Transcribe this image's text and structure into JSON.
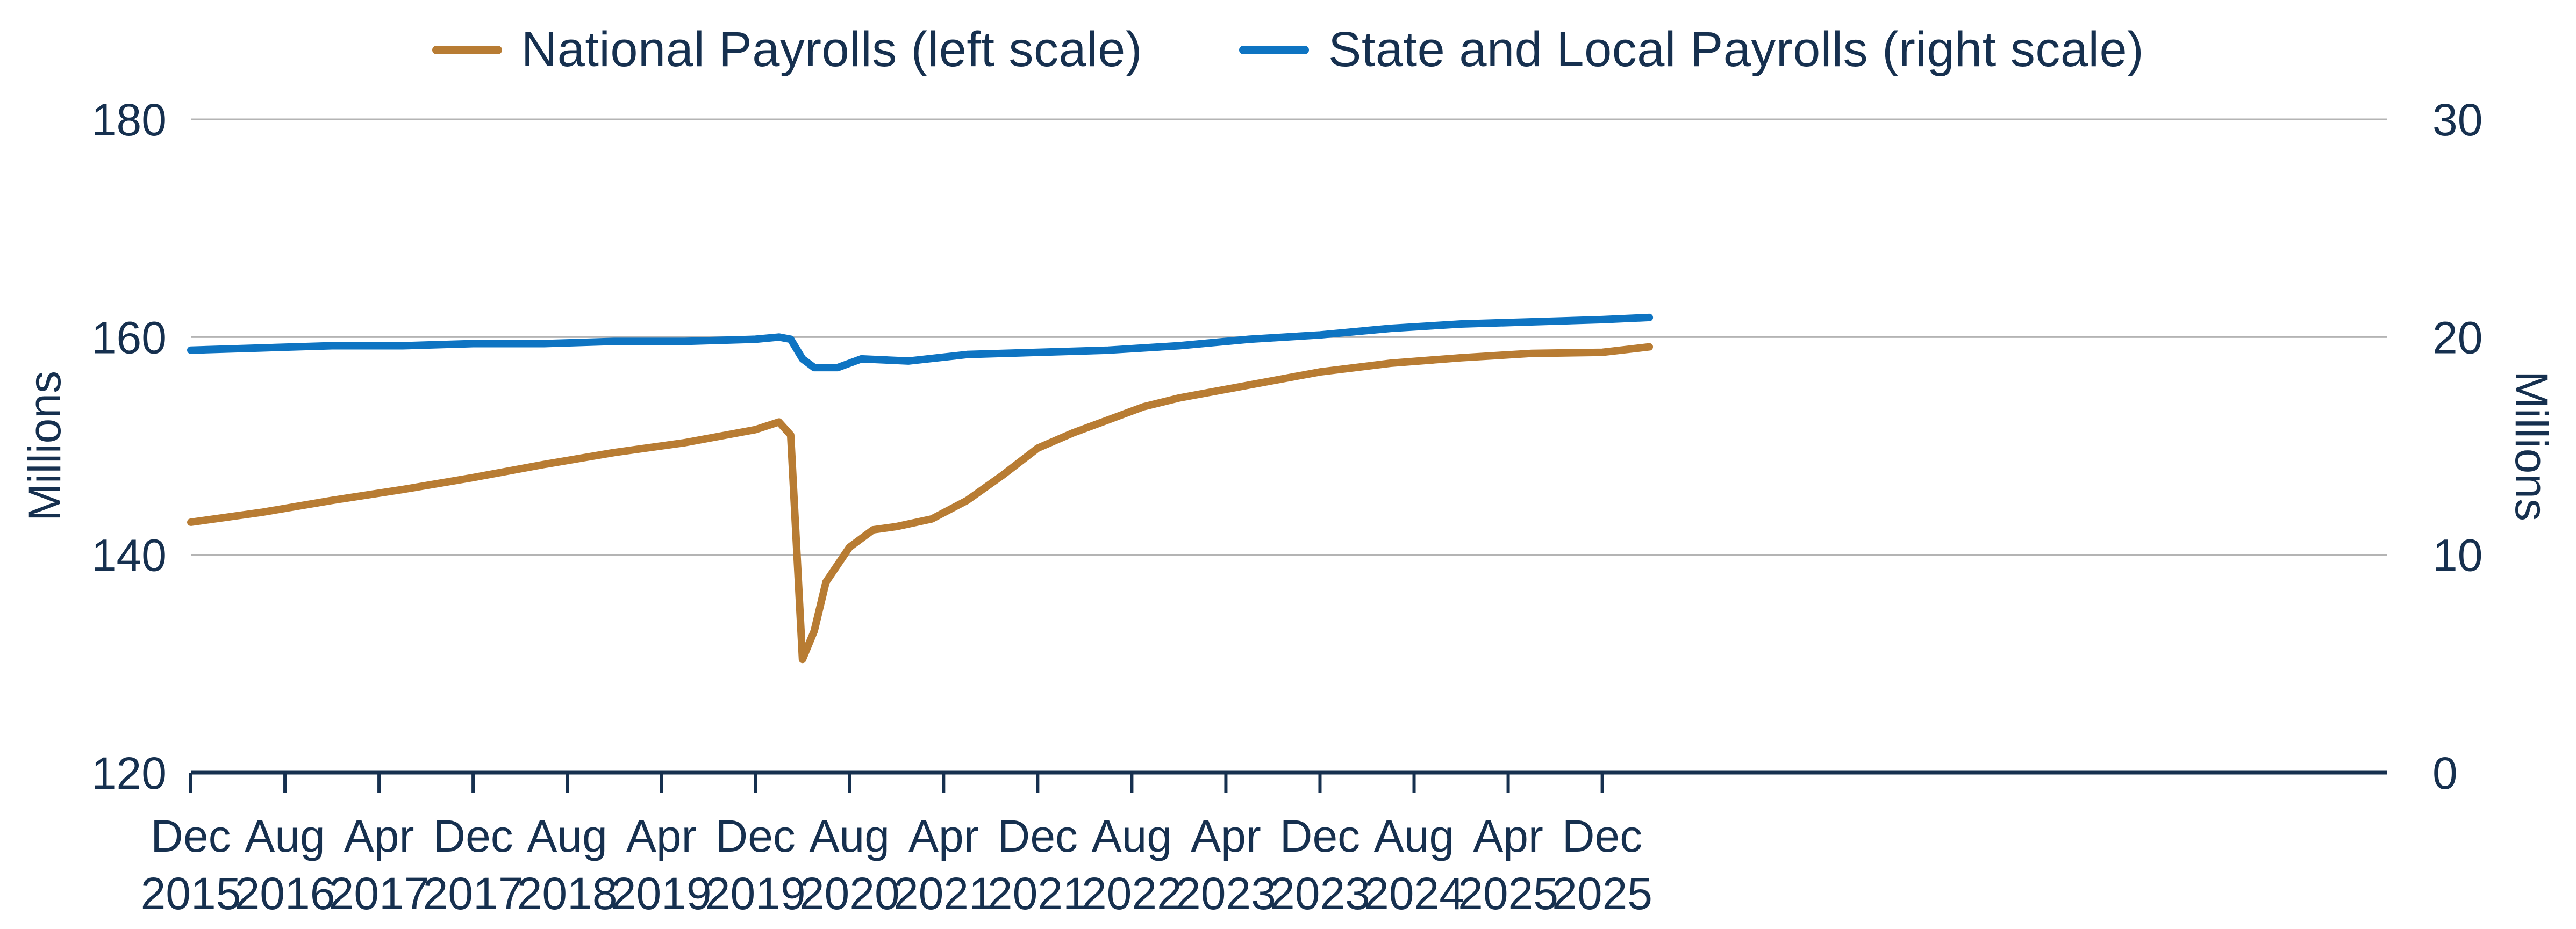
{
  "chart_data": {
    "type": "line",
    "legend": [
      {
        "label": "National Payrolls (left scale)",
        "color": "#b87c33"
      },
      {
        "label": "State and Local Payrolls (right scale)",
        "color": "#0e74c2"
      }
    ],
    "left_axis": {
      "label": "Millions",
      "ylim": [
        120,
        180
      ],
      "ticks": [
        "120",
        "140",
        "160",
        "180"
      ]
    },
    "right_axis": {
      "label": "Millions",
      "ylim": [
        0,
        30
      ],
      "ticks": [
        "0",
        "10",
        "20",
        "30"
      ]
    },
    "x_tick_labels": [
      [
        "Dec",
        "2015"
      ],
      [
        "Aug",
        "2016"
      ],
      [
        "Apr",
        "2017"
      ],
      [
        "Dec",
        "2017"
      ],
      [
        "Aug",
        "2018"
      ],
      [
        "Apr",
        "2019"
      ],
      [
        "Dec",
        "2019"
      ],
      [
        "Aug",
        "2020"
      ],
      [
        "Apr",
        "2021"
      ],
      [
        "Dec",
        "2021"
      ],
      [
        "Aug",
        "2022"
      ],
      [
        "Apr",
        "2023"
      ],
      [
        "Dec",
        "2023"
      ],
      [
        "Aug",
        "2024"
      ],
      [
        "Apr",
        "2025"
      ],
      [
        "Dec",
        "2025"
      ]
    ],
    "x_range": [
      "2015-12",
      "2026-04"
    ],
    "grid": true,
    "legend_position": "top-center",
    "series": [
      {
        "name": "National Payrolls (left scale)",
        "axis": "left",
        "color": "#b87c33",
        "points": [
          [
            "2015-12",
            143.0
          ],
          [
            "2016-06",
            143.9
          ],
          [
            "2016-12",
            145.0
          ],
          [
            "2017-06",
            146.0
          ],
          [
            "2017-12",
            147.1
          ],
          [
            "2018-06",
            148.3
          ],
          [
            "2018-12",
            149.4
          ],
          [
            "2019-06",
            150.3
          ],
          [
            "2019-12",
            151.5
          ],
          [
            "2020-02",
            152.2
          ],
          [
            "2020-03",
            151.0
          ],
          [
            "2020-04",
            130.4
          ],
          [
            "2020-05",
            133.0
          ],
          [
            "2020-06",
            137.5
          ],
          [
            "2020-08",
            140.7
          ],
          [
            "2020-10",
            142.3
          ],
          [
            "2020-12",
            142.6
          ],
          [
            "2021-03",
            143.3
          ],
          [
            "2021-06",
            145.0
          ],
          [
            "2021-09",
            147.3
          ],
          [
            "2021-12",
            149.8
          ],
          [
            "2022-03",
            151.2
          ],
          [
            "2022-06",
            152.4
          ],
          [
            "2022-09",
            153.6
          ],
          [
            "2022-12",
            154.4
          ],
          [
            "2023-06",
            155.6
          ],
          [
            "2023-12",
            156.8
          ],
          [
            "2024-06",
            157.6
          ],
          [
            "2024-12",
            158.1
          ],
          [
            "2025-06",
            158.5
          ],
          [
            "2025-12",
            158.6
          ],
          [
            "2026-04",
            159.1
          ]
        ]
      },
      {
        "name": "State and Local Payrolls (right scale)",
        "axis": "right",
        "color": "#0e74c2",
        "points": [
          [
            "2015-12",
            19.4
          ],
          [
            "2016-06",
            19.5
          ],
          [
            "2016-12",
            19.6
          ],
          [
            "2017-06",
            19.6
          ],
          [
            "2017-12",
            19.7
          ],
          [
            "2018-06",
            19.7
          ],
          [
            "2018-12",
            19.8
          ],
          [
            "2019-06",
            19.8
          ],
          [
            "2019-12",
            19.9
          ],
          [
            "2020-02",
            20.0
          ],
          [
            "2020-03",
            19.9
          ],
          [
            "2020-04",
            19.0
          ],
          [
            "2020-05",
            18.6
          ],
          [
            "2020-07",
            18.6
          ],
          [
            "2020-09",
            19.0
          ],
          [
            "2021-01",
            18.9
          ],
          [
            "2021-06",
            19.2
          ],
          [
            "2021-12",
            19.3
          ],
          [
            "2022-06",
            19.4
          ],
          [
            "2022-12",
            19.6
          ],
          [
            "2023-06",
            19.9
          ],
          [
            "2023-12",
            20.1
          ],
          [
            "2024-06",
            20.4
          ],
          [
            "2024-12",
            20.6
          ],
          [
            "2025-06",
            20.7
          ],
          [
            "2025-12",
            20.8
          ],
          [
            "2026-04",
            20.9
          ]
        ]
      }
    ]
  }
}
